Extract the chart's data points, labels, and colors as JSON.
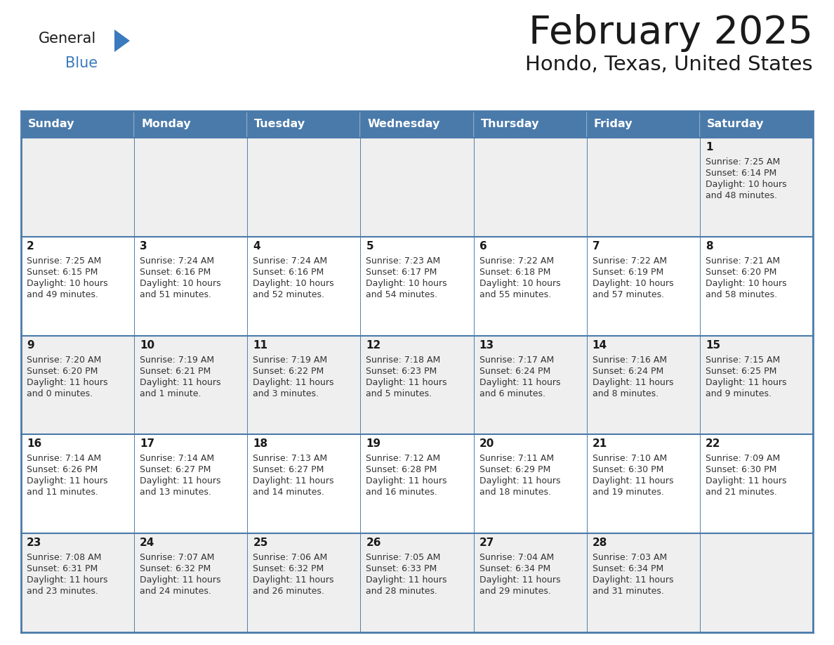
{
  "title": "February 2025",
  "subtitle": "Hondo, Texas, United States",
  "header_bg": "#4a7aaa",
  "header_text_color": "#ffffff",
  "row_bg_odd": "#efefef",
  "row_bg_even": "#ffffff",
  "border_color": "#4a7aaa",
  "day_headers": [
    "Sunday",
    "Monday",
    "Tuesday",
    "Wednesday",
    "Thursday",
    "Friday",
    "Saturday"
  ],
  "title_color": "#1a1a1a",
  "subtitle_color": "#1a1a1a",
  "cell_text_color": "#333333",
  "day_num_color": "#1a1a1a",
  "logo_text_color": "#1a1a1a",
  "logo_blue_color": "#3a7abf",
  "triangle_color": "#3a7abf",
  "calendar_data": [
    [
      null,
      null,
      null,
      null,
      null,
      null,
      {
        "day": "1",
        "sunrise": "7:25 AM",
        "sunset": "6:14 PM",
        "daylight_line1": "Daylight: 10 hours",
        "daylight_line2": "and 48 minutes."
      }
    ],
    [
      {
        "day": "2",
        "sunrise": "7:25 AM",
        "sunset": "6:15 PM",
        "daylight_line1": "Daylight: 10 hours",
        "daylight_line2": "and 49 minutes."
      },
      {
        "day": "3",
        "sunrise": "7:24 AM",
        "sunset": "6:16 PM",
        "daylight_line1": "Daylight: 10 hours",
        "daylight_line2": "and 51 minutes."
      },
      {
        "day": "4",
        "sunrise": "7:24 AM",
        "sunset": "6:16 PM",
        "daylight_line1": "Daylight: 10 hours",
        "daylight_line2": "and 52 minutes."
      },
      {
        "day": "5",
        "sunrise": "7:23 AM",
        "sunset": "6:17 PM",
        "daylight_line1": "Daylight: 10 hours",
        "daylight_line2": "and 54 minutes."
      },
      {
        "day": "6",
        "sunrise": "7:22 AM",
        "sunset": "6:18 PM",
        "daylight_line1": "Daylight: 10 hours",
        "daylight_line2": "and 55 minutes."
      },
      {
        "day": "7",
        "sunrise": "7:22 AM",
        "sunset": "6:19 PM",
        "daylight_line1": "Daylight: 10 hours",
        "daylight_line2": "and 57 minutes."
      },
      {
        "day": "8",
        "sunrise": "7:21 AM",
        "sunset": "6:20 PM",
        "daylight_line1": "Daylight: 10 hours",
        "daylight_line2": "and 58 minutes."
      }
    ],
    [
      {
        "day": "9",
        "sunrise": "7:20 AM",
        "sunset": "6:20 PM",
        "daylight_line1": "Daylight: 11 hours",
        "daylight_line2": "and 0 minutes."
      },
      {
        "day": "10",
        "sunrise": "7:19 AM",
        "sunset": "6:21 PM",
        "daylight_line1": "Daylight: 11 hours",
        "daylight_line2": "and 1 minute."
      },
      {
        "day": "11",
        "sunrise": "7:19 AM",
        "sunset": "6:22 PM",
        "daylight_line1": "Daylight: 11 hours",
        "daylight_line2": "and 3 minutes."
      },
      {
        "day": "12",
        "sunrise": "7:18 AM",
        "sunset": "6:23 PM",
        "daylight_line1": "Daylight: 11 hours",
        "daylight_line2": "and 5 minutes."
      },
      {
        "day": "13",
        "sunrise": "7:17 AM",
        "sunset": "6:24 PM",
        "daylight_line1": "Daylight: 11 hours",
        "daylight_line2": "and 6 minutes."
      },
      {
        "day": "14",
        "sunrise": "7:16 AM",
        "sunset": "6:24 PM",
        "daylight_line1": "Daylight: 11 hours",
        "daylight_line2": "and 8 minutes."
      },
      {
        "day": "15",
        "sunrise": "7:15 AM",
        "sunset": "6:25 PM",
        "daylight_line1": "Daylight: 11 hours",
        "daylight_line2": "and 9 minutes."
      }
    ],
    [
      {
        "day": "16",
        "sunrise": "7:14 AM",
        "sunset": "6:26 PM",
        "daylight_line1": "Daylight: 11 hours",
        "daylight_line2": "and 11 minutes."
      },
      {
        "day": "17",
        "sunrise": "7:14 AM",
        "sunset": "6:27 PM",
        "daylight_line1": "Daylight: 11 hours",
        "daylight_line2": "and 13 minutes."
      },
      {
        "day": "18",
        "sunrise": "7:13 AM",
        "sunset": "6:27 PM",
        "daylight_line1": "Daylight: 11 hours",
        "daylight_line2": "and 14 minutes."
      },
      {
        "day": "19",
        "sunrise": "7:12 AM",
        "sunset": "6:28 PM",
        "daylight_line1": "Daylight: 11 hours",
        "daylight_line2": "and 16 minutes."
      },
      {
        "day": "20",
        "sunrise": "7:11 AM",
        "sunset": "6:29 PM",
        "daylight_line1": "Daylight: 11 hours",
        "daylight_line2": "and 18 minutes."
      },
      {
        "day": "21",
        "sunrise": "7:10 AM",
        "sunset": "6:30 PM",
        "daylight_line1": "Daylight: 11 hours",
        "daylight_line2": "and 19 minutes."
      },
      {
        "day": "22",
        "sunrise": "7:09 AM",
        "sunset": "6:30 PM",
        "daylight_line1": "Daylight: 11 hours",
        "daylight_line2": "and 21 minutes."
      }
    ],
    [
      {
        "day": "23",
        "sunrise": "7:08 AM",
        "sunset": "6:31 PM",
        "daylight_line1": "Daylight: 11 hours",
        "daylight_line2": "and 23 minutes."
      },
      {
        "day": "24",
        "sunrise": "7:07 AM",
        "sunset": "6:32 PM",
        "daylight_line1": "Daylight: 11 hours",
        "daylight_line2": "and 24 minutes."
      },
      {
        "day": "25",
        "sunrise": "7:06 AM",
        "sunset": "6:32 PM",
        "daylight_line1": "Daylight: 11 hours",
        "daylight_line2": "and 26 minutes."
      },
      {
        "day": "26",
        "sunrise": "7:05 AM",
        "sunset": "6:33 PM",
        "daylight_line1": "Daylight: 11 hours",
        "daylight_line2": "and 28 minutes."
      },
      {
        "day": "27",
        "sunrise": "7:04 AM",
        "sunset": "6:34 PM",
        "daylight_line1": "Daylight: 11 hours",
        "daylight_line2": "and 29 minutes."
      },
      {
        "day": "28",
        "sunrise": "7:03 AM",
        "sunset": "6:34 PM",
        "daylight_line1": "Daylight: 11 hours",
        "daylight_line2": "and 31 minutes."
      },
      null
    ]
  ]
}
